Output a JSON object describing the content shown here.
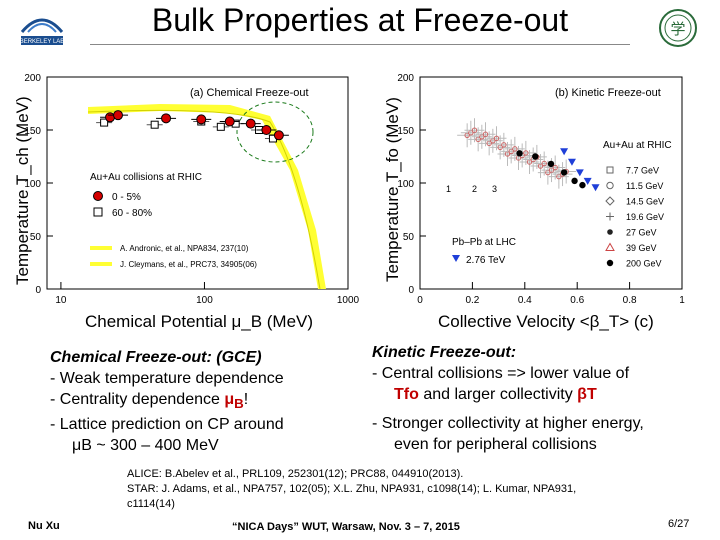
{
  "header": {
    "title": "Bulk Properties at Freeze-out",
    "left_logo_text": "BERKELEY LAB",
    "right_logo_text": "学"
  },
  "colors": {
    "red": "#d40000",
    "yellow": "#ffff33",
    "blue": "#1f3fd8",
    "heading_red": "#c00000"
  },
  "chart_data": [
    {
      "type": "scatter",
      "title": "(a) Chemical Freeze-out",
      "xlabel": "Chemical Potential μ_B (MeV)",
      "ylabel": "Temperature T_ch (MeV)",
      "xscale": "log",
      "xlim": [
        8,
        1000
      ],
      "ylim": [
        0,
        200
      ],
      "yticks": [
        "0",
        "50",
        "100",
        "150",
        "200"
      ],
      "xticks": [
        "10",
        "100",
        "1000"
      ],
      "legend_title": "Au+Au collisions at RHIC",
      "series": [
        {
          "name": "0 - 5%",
          "x": [
            22,
            25,
            54,
            95,
            150,
            210,
            270,
            330
          ],
          "y": [
            162,
            164,
            161,
            160,
            158,
            156,
            150,
            145
          ]
        },
        {
          "name": "60 - 80%",
          "x": [
            20,
            45,
            95,
            130,
            165,
            240,
            300
          ],
          "y": [
            157,
            155,
            158,
            153,
            156,
            150,
            142
          ]
        }
      ],
      "curve_labels": [
        "A. Andronic, et al., NPA834, 237(10)",
        "J. Cleymans, et al., PRC73, 34905(06)"
      ]
    },
    {
      "type": "scatter",
      "title": "(b) Kinetic Freeze-out",
      "xlabel": "Collective Velocity <β_T> (c)",
      "ylabel": "Temperature T_fo (MeV)",
      "xlim": [
        0,
        1
      ],
      "ylim": [
        0,
        200
      ],
      "yticks": [
        "0",
        "50",
        "100",
        "150",
        "200"
      ],
      "xticks": [
        "0",
        "0.2",
        "0.4",
        "0.6",
        "0.8",
        "1"
      ],
      "legend_title": "Au+Au at RHIC",
      "legend": [
        "7.7 GeV",
        "11.5 GeV",
        "14.5 GeV",
        "19.6 GeV",
        "27 GeV",
        "39 GeV",
        "200 GeV"
      ],
      "lhc_label": "Pb–Pb at LHC",
      "lhc_series": {
        "name": "2.76 TeV",
        "x": [
          0.55,
          0.58,
          0.61,
          0.64,
          0.67
        ],
        "y": [
          130,
          120,
          110,
          102,
          96
        ]
      },
      "rhc_200": {
        "x": [
          0.38,
          0.44,
          0.5,
          0.55,
          0.59,
          0.62
        ],
        "y": [
          128,
          125,
          118,
          110,
          102,
          98
        ]
      },
      "annotations": [
        "1",
        "2",
        "3"
      ]
    }
  ],
  "left_panel": {
    "heading": "Chemical Freeze-out: (GCE)",
    "line1": "- Weak temperature dependence",
    "line2_pre": "- Centrality dependence ",
    "line2_sym": "μ",
    "line2_sub": "B",
    "line2_post": "!",
    "line3": "- Lattice prediction on CP around",
    "line4": "μB ~ 300 – 400 MeV"
  },
  "right_panel": {
    "heading": "Kinetic Freeze-out:",
    "line1": "- Central collisions => lower value of",
    "line2_sym": "Tfo",
    "line2_mid": " and larger collectivity ",
    "line2_beta": "βT",
    "line3": "- Stronger collectivity at higher energy,",
    "line4": "even for peripheral collisions"
  },
  "refs": {
    "line1": "ALICE: B.Abelev et al., PRL109, 252301(12); PRC88, 044910(2013).",
    "line2": "STAR: J. Adams, et al., NPA757, 102(05); X.L. Zhu, NPA931, c1098(14); L. Kumar, NPA931,",
    "line3": "c1114(14)"
  },
  "footer": {
    "author": "Nu Xu",
    "event_quoted": "“NICA Days”",
    "event_rest": " WUT, Warsaw, Nov. 3 – 7, 2015",
    "page": "6/27"
  }
}
